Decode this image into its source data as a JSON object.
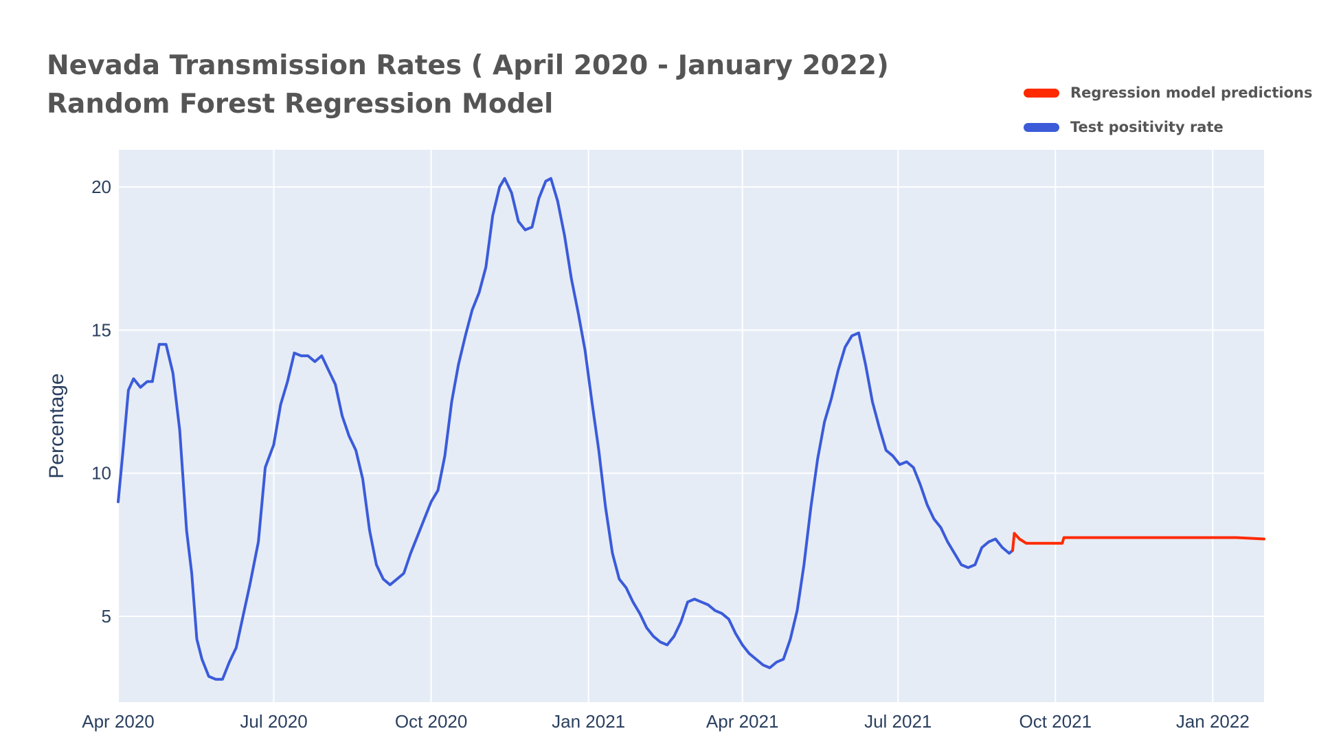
{
  "title_line1": "Nevada Transmission Rates ( April 2020 - January 2022)",
  "title_line2": "Random Forest Regression Model",
  "legend": [
    {
      "label": "Regression model predictions",
      "color": "#ff2a00"
    },
    {
      "label": "Test positivity rate",
      "color": "#3b5bd9"
    }
  ],
  "colors": {
    "plot_bg": "#e5ecf6",
    "grid": "#ffffff",
    "tick_text": "#2a3f5f",
    "title_text": "#555555"
  },
  "chart_data": {
    "type": "line",
    "title": "Nevada Transmission Rates ( April 2020 - January 2022)",
    "subtitle": "Random Forest Regression Model",
    "xlabel": "",
    "ylabel": "Percentage",
    "xlim": [
      "2020-04-01",
      "2022-01-31"
    ],
    "ylim": [
      2,
      21.3
    ],
    "x_ticks": [
      {
        "date": "2020-04-01",
        "label": "Apr 2020"
      },
      {
        "date": "2020-07-01",
        "label": "Jul 2020"
      },
      {
        "date": "2020-10-01",
        "label": "Oct 2020"
      },
      {
        "date": "2021-01-01",
        "label": "Jan 2021"
      },
      {
        "date": "2021-04-01",
        "label": "Apr 2021"
      },
      {
        "date": "2021-07-01",
        "label": "Jul 2021"
      },
      {
        "date": "2021-10-01",
        "label": "Oct 2021"
      },
      {
        "date": "2022-01-01",
        "label": "Jan 2022"
      }
    ],
    "y_ticks": [
      5,
      10,
      15,
      20
    ],
    "grid": true,
    "legend_position": "top-right",
    "series": [
      {
        "name": "Test positivity rate",
        "color": "#3b5bd9",
        "points": [
          [
            "2020-04-01",
            9.0
          ],
          [
            "2020-04-04",
            10.9
          ],
          [
            "2020-04-07",
            12.9
          ],
          [
            "2020-04-10",
            13.3
          ],
          [
            "2020-04-14",
            13.0
          ],
          [
            "2020-04-18",
            13.2
          ],
          [
            "2020-04-21",
            13.2
          ],
          [
            "2020-04-25",
            14.5
          ],
          [
            "2020-04-29",
            14.5
          ],
          [
            "2020-05-03",
            13.5
          ],
          [
            "2020-05-07",
            11.5
          ],
          [
            "2020-05-11",
            8.0
          ],
          [
            "2020-05-14",
            6.5
          ],
          [
            "2020-05-17",
            4.2
          ],
          [
            "2020-05-20",
            3.5
          ],
          [
            "2020-05-24",
            2.9
          ],
          [
            "2020-05-28",
            2.8
          ],
          [
            "2020-06-01",
            2.8
          ],
          [
            "2020-06-05",
            3.4
          ],
          [
            "2020-06-09",
            3.9
          ],
          [
            "2020-06-13",
            5.0
          ],
          [
            "2020-06-17",
            6.1
          ],
          [
            "2020-06-22",
            7.6
          ],
          [
            "2020-06-26",
            10.2
          ],
          [
            "2020-07-01",
            11.0
          ],
          [
            "2020-07-05",
            12.4
          ],
          [
            "2020-07-09",
            13.2
          ],
          [
            "2020-07-13",
            14.2
          ],
          [
            "2020-07-17",
            14.1
          ],
          [
            "2020-07-21",
            14.1
          ],
          [
            "2020-07-25",
            13.9
          ],
          [
            "2020-07-29",
            14.1
          ],
          [
            "2020-08-02",
            13.6
          ],
          [
            "2020-08-06",
            13.1
          ],
          [
            "2020-08-10",
            12.0
          ],
          [
            "2020-08-14",
            11.3
          ],
          [
            "2020-08-18",
            10.8
          ],
          [
            "2020-08-22",
            9.8
          ],
          [
            "2020-08-26",
            8.0
          ],
          [
            "2020-08-30",
            6.8
          ],
          [
            "2020-09-03",
            6.3
          ],
          [
            "2020-09-07",
            6.1
          ],
          [
            "2020-09-11",
            6.3
          ],
          [
            "2020-09-15",
            6.5
          ],
          [
            "2020-09-19",
            7.2
          ],
          [
            "2020-09-23",
            7.8
          ],
          [
            "2020-09-27",
            8.4
          ],
          [
            "2020-10-01",
            9.0
          ],
          [
            "2020-10-05",
            9.4
          ],
          [
            "2020-10-09",
            10.6
          ],
          [
            "2020-10-13",
            12.5
          ],
          [
            "2020-10-17",
            13.8
          ],
          [
            "2020-10-21",
            14.8
          ],
          [
            "2020-10-25",
            15.7
          ],
          [
            "2020-10-29",
            16.3
          ],
          [
            "2020-11-02",
            17.2
          ],
          [
            "2020-11-06",
            19.0
          ],
          [
            "2020-11-10",
            20.0
          ],
          [
            "2020-11-13",
            20.3
          ],
          [
            "2020-11-17",
            19.8
          ],
          [
            "2020-11-21",
            18.8
          ],
          [
            "2020-11-25",
            18.5
          ],
          [
            "2020-11-29",
            18.6
          ],
          [
            "2020-12-03",
            19.6
          ],
          [
            "2020-12-07",
            20.2
          ],
          [
            "2020-12-10",
            20.3
          ],
          [
            "2020-12-14",
            19.5
          ],
          [
            "2020-12-18",
            18.3
          ],
          [
            "2020-12-22",
            16.8
          ],
          [
            "2020-12-26",
            15.6
          ],
          [
            "2020-12-30",
            14.3
          ],
          [
            "2021-01-03",
            12.5
          ],
          [
            "2021-01-07",
            10.8
          ],
          [
            "2021-01-11",
            8.8
          ],
          [
            "2021-01-15",
            7.2
          ],
          [
            "2021-01-19",
            6.3
          ],
          [
            "2021-01-23",
            6.0
          ],
          [
            "2021-01-27",
            5.5
          ],
          [
            "2021-01-31",
            5.1
          ],
          [
            "2021-02-04",
            4.6
          ],
          [
            "2021-02-08",
            4.3
          ],
          [
            "2021-02-12",
            4.1
          ],
          [
            "2021-02-16",
            4.0
          ],
          [
            "2021-02-20",
            4.3
          ],
          [
            "2021-02-24",
            4.8
          ],
          [
            "2021-02-28",
            5.5
          ],
          [
            "2021-03-04",
            5.6
          ],
          [
            "2021-03-08",
            5.5
          ],
          [
            "2021-03-12",
            5.4
          ],
          [
            "2021-03-16",
            5.2
          ],
          [
            "2021-03-20",
            5.1
          ],
          [
            "2021-03-24",
            4.9
          ],
          [
            "2021-03-28",
            4.4
          ],
          [
            "2021-04-01",
            4.0
          ],
          [
            "2021-04-05",
            3.7
          ],
          [
            "2021-04-09",
            3.5
          ],
          [
            "2021-04-13",
            3.3
          ],
          [
            "2021-04-17",
            3.2
          ],
          [
            "2021-04-21",
            3.4
          ],
          [
            "2021-04-25",
            3.5
          ],
          [
            "2021-04-29",
            4.2
          ],
          [
            "2021-05-03",
            5.2
          ],
          [
            "2021-05-07",
            6.8
          ],
          [
            "2021-05-11",
            8.8
          ],
          [
            "2021-05-15",
            10.5
          ],
          [
            "2021-05-19",
            11.8
          ],
          [
            "2021-05-23",
            12.6
          ],
          [
            "2021-05-27",
            13.6
          ],
          [
            "2021-05-31",
            14.4
          ],
          [
            "2021-06-04",
            14.8
          ],
          [
            "2021-06-08",
            14.9
          ],
          [
            "2021-06-12",
            13.8
          ],
          [
            "2021-06-16",
            12.5
          ],
          [
            "2021-06-20",
            11.6
          ],
          [
            "2021-06-24",
            10.8
          ],
          [
            "2021-06-28",
            10.6
          ],
          [
            "2021-07-02",
            10.3
          ],
          [
            "2021-07-06",
            10.4
          ],
          [
            "2021-07-10",
            10.2
          ],
          [
            "2021-07-14",
            9.6
          ],
          [
            "2021-07-18",
            8.9
          ],
          [
            "2021-07-22",
            8.4
          ],
          [
            "2021-07-26",
            8.1
          ],
          [
            "2021-07-30",
            7.6
          ],
          [
            "2021-08-03",
            7.2
          ],
          [
            "2021-08-07",
            6.8
          ],
          [
            "2021-08-11",
            6.7
          ],
          [
            "2021-08-15",
            6.8
          ],
          [
            "2021-08-19",
            7.4
          ],
          [
            "2021-08-23",
            7.6
          ],
          [
            "2021-08-27",
            7.7
          ],
          [
            "2021-08-31",
            7.4
          ],
          [
            "2021-09-04",
            7.2
          ],
          [
            "2021-09-06",
            7.3
          ]
        ]
      },
      {
        "name": "Regression model predictions",
        "color": "#ff2a00",
        "points": [
          [
            "2021-09-06",
            7.3
          ],
          [
            "2021-09-07",
            7.9
          ],
          [
            "2021-09-10",
            7.7
          ],
          [
            "2021-09-14",
            7.55
          ],
          [
            "2021-09-20",
            7.55
          ],
          [
            "2021-09-28",
            7.55
          ],
          [
            "2021-10-05",
            7.55
          ],
          [
            "2021-10-06",
            7.75
          ],
          [
            "2021-10-15",
            7.75
          ],
          [
            "2021-10-25",
            7.75
          ],
          [
            "2021-11-05",
            7.75
          ],
          [
            "2021-11-15",
            7.75
          ],
          [
            "2021-11-25",
            7.75
          ],
          [
            "2021-12-05",
            7.75
          ],
          [
            "2021-12-15",
            7.75
          ],
          [
            "2021-12-25",
            7.75
          ],
          [
            "2022-01-05",
            7.75
          ],
          [
            "2022-01-15",
            7.75
          ],
          [
            "2022-01-31",
            7.7
          ]
        ]
      }
    ]
  }
}
